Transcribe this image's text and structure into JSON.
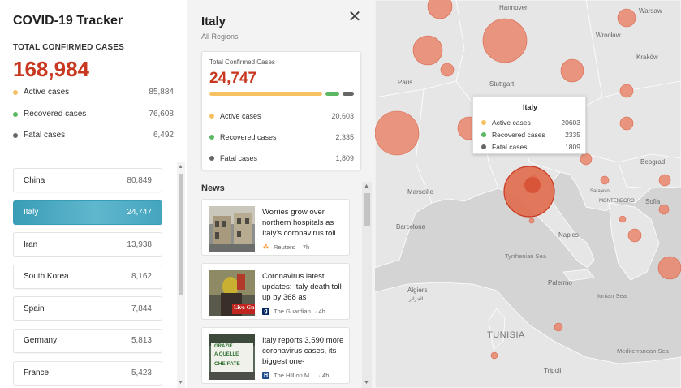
{
  "app": {
    "title": "COVID-19 Tracker"
  },
  "colors": {
    "accent_red": "#c8371f",
    "active": "#f5c163",
    "recovered": "#5cb860",
    "fatal": "#666666",
    "selected": "#4aaac3",
    "bubble": "#e8856b"
  },
  "global": {
    "total_label": "TOTAL CONFIRMED CASES",
    "total_value": "168,984",
    "stats": [
      {
        "label": "Active cases",
        "value": "85,884"
      },
      {
        "label": "Recovered cases",
        "value": "76,608"
      },
      {
        "label": "Fatal cases",
        "value": "6,492"
      }
    ]
  },
  "countries": [
    {
      "name": "China",
      "value": "80,849"
    },
    {
      "name": "Italy",
      "value": "24,747",
      "selected": true
    },
    {
      "name": "Iran",
      "value": "13,938"
    },
    {
      "name": "South Korea",
      "value": "8,162"
    },
    {
      "name": "Spain",
      "value": "7,844"
    },
    {
      "name": "Germany",
      "value": "5,813"
    },
    {
      "name": "France",
      "value": "5,423"
    }
  ],
  "detail": {
    "title": "Italy",
    "subtitle": "All Regions",
    "card": {
      "label": "Total Confirmed Cases",
      "value": "24,747",
      "stats": [
        {
          "label": "Active cases",
          "value": "20,603"
        },
        {
          "label": "Recovered cases",
          "value": "2,335"
        },
        {
          "label": "Fatal cases",
          "value": "1,809"
        }
      ],
      "proportions": {
        "active": 20603,
        "recovered": 2335,
        "fatal": 1809
      }
    },
    "news_heading": "News",
    "news": [
      {
        "headline": "Worries grow over northern hospitals as Italy's coronavirus toll",
        "source": "Reuters",
        "age": "7h",
        "icon": "reuters-icon"
      },
      {
        "headline": "Coronavirus latest updates: Italy death toll up by 368 as",
        "source": "The Guardian",
        "age": "4h",
        "icon": "guardian-icon"
      },
      {
        "headline": "Italy reports 3,590 more coronavirus cases, its biggest one-",
        "source": "The Hill on M...",
        "age": "4h",
        "icon": "hill-icon"
      }
    ],
    "thumb_texts": {
      "live": "Live Gu",
      "sign1": "GRAZIE",
      "sign2": "A QUELLE",
      "sign3": "CHE FATE"
    }
  },
  "map": {
    "labels": {
      "hannover": "Hannover",
      "warsaw": "Warsaw",
      "wroclaw": "Wrocław",
      "krakow": "Kraków",
      "paris": "Paris",
      "stuttgart": "Stuttgart",
      "marseille": "Marseille",
      "belgrade": "Beograd",
      "sarajevo": "Sarajevo",
      "montenegro": "MONTENEGRO",
      "sofia": "Sofia",
      "barcelona": "Barcelona",
      "naples": "Naples",
      "tyrrhenian": "Tyrrhenian Sea",
      "palermo": "Palermo",
      "algiers": "Algiers",
      "algeria": "الجزائر",
      "ionian": "Ionian Sea",
      "tunisia": "TUNISIA",
      "mediterranean": "Mediterranean Sea",
      "tripoli": "Tripoli"
    },
    "tooltip": {
      "title": "Italy",
      "rows": [
        {
          "label": "Active cases",
          "value": "20603"
        },
        {
          "label": "Recovered cases",
          "value": "2335"
        },
        {
          "label": "Fatal cases",
          "value": "1809"
        }
      ]
    }
  }
}
